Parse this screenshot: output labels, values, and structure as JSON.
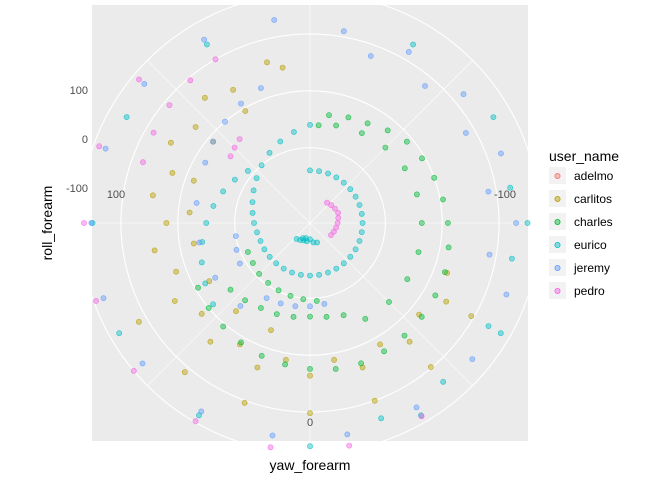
{
  "chart_data": {
    "type": "scatter",
    "coord": "polar",
    "xlabel": "yaw_forearm",
    "ylabel": "roll_forearm",
    "theta_ticks": [
      "100",
      "-100",
      "0"
    ],
    "r_ticks": [
      "100",
      "0",
      "-100"
    ],
    "grid": true,
    "legend_position": "right",
    "legend_title": "user_name",
    "series": [
      {
        "name": "adelmo",
        "color": "#F8766D",
        "points": []
      },
      {
        "name": "carlitos",
        "color": "#B79F00",
        "points": [
          [
            165,
            60
          ],
          [
            140,
            55
          ],
          [
            120,
            50
          ],
          [
            100,
            48
          ],
          [
            80,
            45
          ],
          [
            60,
            42
          ],
          [
            40,
            40
          ],
          [
            20,
            38
          ],
          [
            0,
            36
          ],
          [
            -20,
            38
          ],
          [
            -40,
            40
          ],
          [
            -60,
            44
          ],
          [
            170,
            45
          ],
          [
            150,
            38
          ],
          [
            130,
            30
          ],
          [
            110,
            25
          ],
          [
            90,
            20
          ],
          [
            70,
            18
          ],
          [
            50,
            16
          ],
          [
            30,
            14
          ],
          [
            10,
            12
          ],
          [
            -10,
            12
          ],
          [
            -30,
            14
          ],
          [
            -50,
            18
          ],
          [
            -70,
            24
          ],
          [
            150,
            -5
          ],
          [
            130,
            -10
          ],
          [
            110,
            -15
          ],
          [
            95,
            -20
          ],
          [
            80,
            -25
          ],
          [
            60,
            -28
          ],
          [
            40,
            -30
          ],
          [
            20,
            -32
          ],
          [
            -60,
            95
          ],
          [
            -40,
            98
          ],
          [
            -20,
            100
          ],
          [
            0,
            102
          ],
          [
            20,
            104
          ],
          [
            40,
            110
          ],
          [
            60,
            115
          ]
        ]
      },
      {
        "name": "charles",
        "color": "#00BA38",
        "points": [
          [
            -170,
            -40
          ],
          [
            -160,
            -35
          ],
          [
            -150,
            -30
          ],
          [
            -140,
            -20
          ],
          [
            -130,
            -10
          ],
          [
            -120,
            -5
          ],
          [
            -110,
            0
          ],
          [
            -100,
            5
          ],
          [
            -90,
            10
          ],
          [
            -80,
            15
          ],
          [
            -70,
            20
          ],
          [
            -60,
            22
          ],
          [
            -50,
            24
          ],
          [
            -40,
            26
          ],
          [
            -30,
            28
          ],
          [
            -20,
            30
          ],
          [
            -10,
            28
          ],
          [
            0,
            24
          ],
          [
            10,
            20
          ],
          [
            20,
            16
          ],
          [
            30,
            10
          ],
          [
            40,
            5
          ],
          [
            50,
            0
          ],
          [
            60,
            -5
          ],
          [
            -175,
            -60
          ],
          [
            -165,
            -55
          ],
          [
            -150,
            -50
          ],
          [
            -135,
            -45
          ],
          [
            -120,
            -40
          ],
          [
            -105,
            -38
          ],
          [
            -90,
            -36
          ],
          [
            -75,
            -35
          ],
          [
            -60,
            -35
          ],
          [
            -45,
            -36
          ],
          [
            -30,
            -38
          ],
          [
            -20,
            -60
          ],
          [
            -10,
            -65
          ],
          [
            0,
            -68
          ],
          [
            10,
            -65
          ],
          [
            20,
            -62
          ],
          [
            30,
            -60
          ],
          [
            40,
            -55
          ],
          [
            50,
            -50
          ],
          [
            -5,
            -95
          ],
          [
            5,
            -98
          ],
          [
            15,
            -100
          ],
          [
            25,
            -102
          ],
          [
            35,
            -104
          ],
          [
            45,
            -106
          ],
          [
            55,
            -110
          ],
          [
            65,
            -112
          ]
        ]
      },
      {
        "name": "eurico",
        "color": "#00BFC4",
        "points": [
          [
            -180,
            -140
          ],
          [
            -170,
            -140
          ],
          [
            -160,
            -140
          ],
          [
            -150,
            -140
          ],
          [
            -140,
            -140
          ],
          [
            -130,
            -140
          ],
          [
            -120,
            -140
          ],
          [
            -110,
            -140
          ],
          [
            -100,
            -140
          ],
          [
            -90,
            -140
          ],
          [
            -80,
            -140
          ],
          [
            -70,
            -140
          ],
          [
            -60,
            -140
          ],
          [
            -50,
            -140
          ],
          [
            -40,
            -140
          ],
          [
            -30,
            -140
          ],
          [
            -20,
            -140
          ],
          [
            -10,
            -140
          ],
          [
            0,
            -140
          ],
          [
            10,
            -140
          ],
          [
            20,
            -140
          ],
          [
            30,
            -140
          ],
          [
            40,
            -140
          ],
          [
            50,
            -140
          ],
          [
            60,
            -140
          ],
          [
            70,
            -140
          ],
          [
            80,
            -138
          ],
          [
            90,
            -134
          ],
          [
            100,
            -130
          ],
          [
            110,
            -125
          ],
          [
            120,
            -118
          ],
          [
            130,
            -110
          ],
          [
            140,
            -100
          ],
          [
            150,
            -90
          ],
          [
            160,
            -80
          ],
          [
            170,
            -70
          ],
          [
            180,
            -60
          ],
          [
            130,
            -90
          ],
          [
            120,
            -80
          ],
          [
            110,
            -70
          ],
          [
            100,
            -60
          ],
          [
            90,
            -50
          ],
          [
            80,
            -40
          ],
          [
            70,
            -30
          ],
          [
            60,
            -20
          ],
          [
            50,
            -10
          ],
          [
            -150,
            130
          ],
          [
            -120,
            140
          ],
          [
            -90,
            150
          ],
          [
            -60,
            155
          ],
          [
            -30,
            158
          ],
          [
            0,
            160
          ],
          [
            30,
            158
          ],
          [
            60,
            155
          ],
          [
            90,
            150
          ],
          [
            120,
            140
          ],
          [
            150,
            130
          ],
          [
            -100,
            125
          ],
          [
            -80,
            128
          ],
          [
            -60,
            130
          ],
          [
            -40,
            132
          ],
          [
            -20,
            133
          ],
          [
            10,
            -200
          ],
          [
            20,
            -200
          ],
          [
            30,
            -198
          ],
          [
            40,
            -196
          ],
          [
            -10,
            -198
          ],
          [
            -20,
            -196
          ],
          [
            0,
            -204
          ],
          [
            15,
            -205
          ],
          [
            25,
            -203
          ]
        ]
      },
      {
        "name": "jeremy",
        "color": "#619CFF",
        "points": [
          [
            -170,
            110
          ],
          [
            -150,
            115
          ],
          [
            -130,
            120
          ],
          [
            -110,
            125
          ],
          [
            -90,
            130
          ],
          [
            -70,
            135
          ],
          [
            -50,
            140
          ],
          [
            -30,
            142
          ],
          [
            -10,
            145
          ],
          [
            10,
            147
          ],
          [
            30,
            150
          ],
          [
            50,
            152
          ],
          [
            70,
            154
          ],
          [
            90,
            152
          ],
          [
            110,
            150
          ],
          [
            130,
            148
          ],
          [
            150,
            140
          ],
          [
            170,
            130
          ],
          [
            160,
            20
          ],
          [
            150,
            10
          ],
          [
            140,
            0
          ],
          [
            130,
            -10
          ],
          [
            120,
            -20
          ],
          [
            100,
            -30
          ],
          [
            80,
            -35
          ],
          [
            60,
            -40
          ],
          [
            40,
            -42
          ],
          [
            -160,
            80
          ],
          [
            -140,
            82
          ],
          [
            -120,
            84
          ],
          [
            -100,
            86
          ],
          [
            -80,
            88
          ],
          [
            30,
            -80
          ],
          [
            20,
            -82
          ],
          [
            10,
            -84
          ],
          [
            0,
            -86
          ],
          [
            -10,
            -88
          ],
          [
            60,
            -90
          ],
          [
            70,
            -95
          ],
          [
            80,
            -100
          ]
        ]
      },
      {
        "name": "pedro",
        "color": "#F564E3",
        "points": [
          [
            -30,
            160
          ],
          [
            -10,
            165
          ],
          [
            10,
            168
          ],
          [
            30,
            170
          ],
          [
            50,
            172
          ],
          [
            70,
            168
          ],
          [
            90,
            165
          ],
          [
            110,
            162
          ],
          [
            130,
            160
          ],
          [
            150,
            100
          ],
          [
            140,
            95
          ],
          [
            130,
            90
          ],
          [
            120,
            85
          ],
          [
            110,
            80
          ],
          [
            140,
            -40
          ],
          [
            135,
            -45
          ],
          [
            130,
            -50
          ],
          [
            -60,
            -190
          ],
          [
            -70,
            -188
          ],
          [
            -80,
            -186
          ],
          [
            -90,
            -184
          ],
          [
            -100,
            -182
          ],
          [
            -110,
            -180
          ],
          [
            -120,
            -182
          ],
          [
            -130,
            -184
          ],
          [
            -140,
            -186
          ]
        ]
      }
    ]
  }
}
